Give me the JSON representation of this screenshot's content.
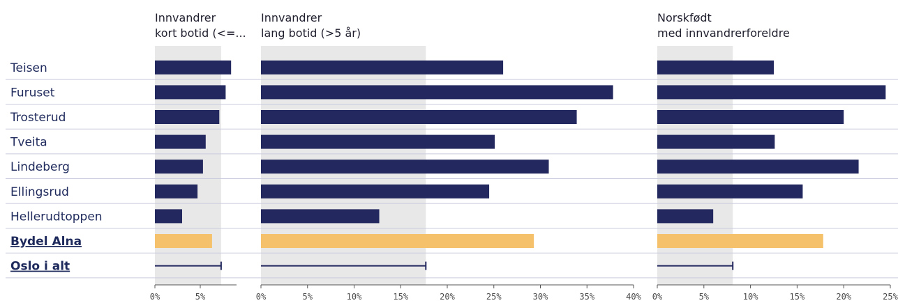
{
  "chart_data": {
    "type": "bar",
    "orientation": "horizontal",
    "categories": [
      "Teisen",
      "Furuset",
      "Trosterud",
      "Tveita",
      "Lindeberg",
      "Ellingsrud",
      "Hellerudtoppen",
      "Bydel Alna",
      "Oslo i alt"
    ],
    "highlight_category": "Bydel Alna",
    "reference_category": "Oslo i alt",
    "colors": {
      "bar": "#23285e",
      "highlight": "#f5c26b",
      "reference_band": "#e8e8e8",
      "reference_marker": "#23285e",
      "separator": "#c9cbdd"
    },
    "panels": [
      {
        "title": [
          "Innvandrer",
          "kort botid (<=..."
        ],
        "values": [
          8.4,
          7.8,
          7.1,
          5.6,
          5.3,
          4.7,
          3.0,
          6.3
        ],
        "reference": 7.3,
        "xlim": [
          0,
          9
        ],
        "ticks": [
          "0%",
          "5%"
        ],
        "tick_values": [
          0,
          5
        ]
      },
      {
        "title": [
          "Innvandrer",
          "lang botid (>5 år)"
        ],
        "values": [
          26.0,
          37.8,
          33.9,
          25.1,
          30.9,
          24.5,
          12.7,
          29.3
        ],
        "reference": 17.7,
        "xlim": [
          0,
          40
        ],
        "ticks": [
          "0%",
          "5%",
          "10%",
          "15%",
          "20%",
          "25%",
          "30%",
          "35%",
          "40%"
        ],
        "tick_values": [
          0,
          5,
          10,
          15,
          20,
          25,
          30,
          35,
          40
        ]
      },
      {
        "title": [
          "Norskfødt",
          "med innvandrerforeldre"
        ],
        "values": [
          12.5,
          24.5,
          20.0,
          12.6,
          21.6,
          15.6,
          6.0,
          17.8
        ],
        "reference": 8.1,
        "xlim": [
          0,
          25
        ],
        "ticks": [
          "0%",
          "5%",
          "10%",
          "15%",
          "20%",
          "25%"
        ],
        "tick_values": [
          0,
          5,
          10,
          15,
          20,
          25
        ]
      }
    ]
  }
}
